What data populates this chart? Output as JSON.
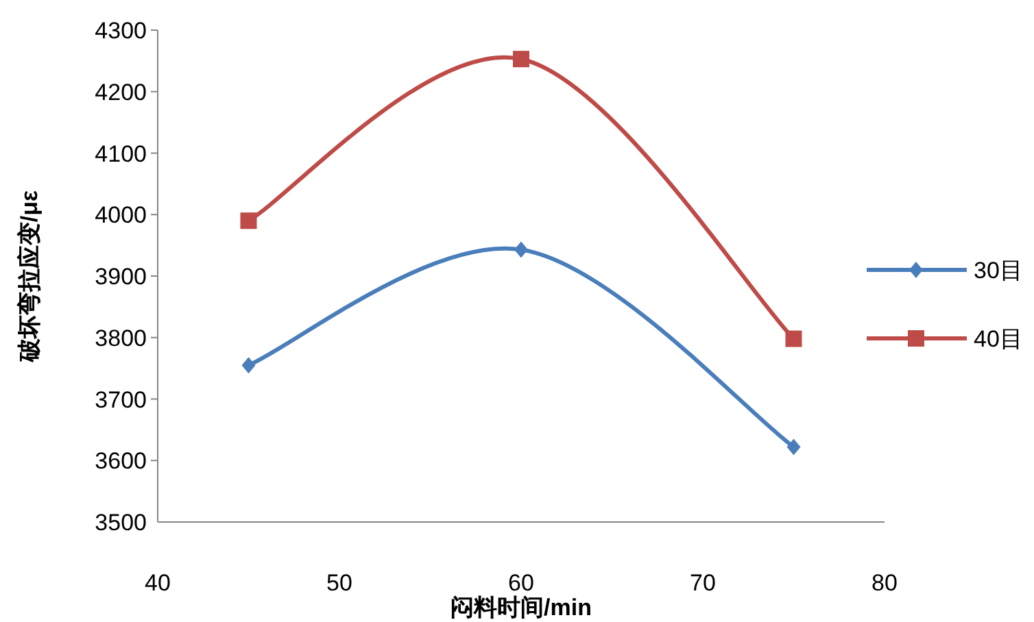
{
  "chart_data": {
    "type": "line",
    "xlabel": "闷料时间/min",
    "ylabel": "破坏弯拉应变/με",
    "xlim": [
      40,
      80
    ],
    "xticks": [
      40,
      50,
      60,
      70,
      80
    ],
    "ylim": [
      3500,
      4300
    ],
    "yticks": [
      3500,
      3600,
      3700,
      3800,
      3900,
      4000,
      4100,
      4200,
      4300
    ],
    "grid": false,
    "legend": "right",
    "line_style": "solid",
    "x": [
      45,
      60,
      75
    ],
    "series": [
      {
        "name": "30目",
        "color": "#4a7ebb",
        "marker": "diamond",
        "values": [
          3755,
          3943,
          3622
        ]
      },
      {
        "name": "40目",
        "color": "#be4b48",
        "marker": "square",
        "values": [
          3990,
          4253,
          3798
        ]
      }
    ]
  }
}
